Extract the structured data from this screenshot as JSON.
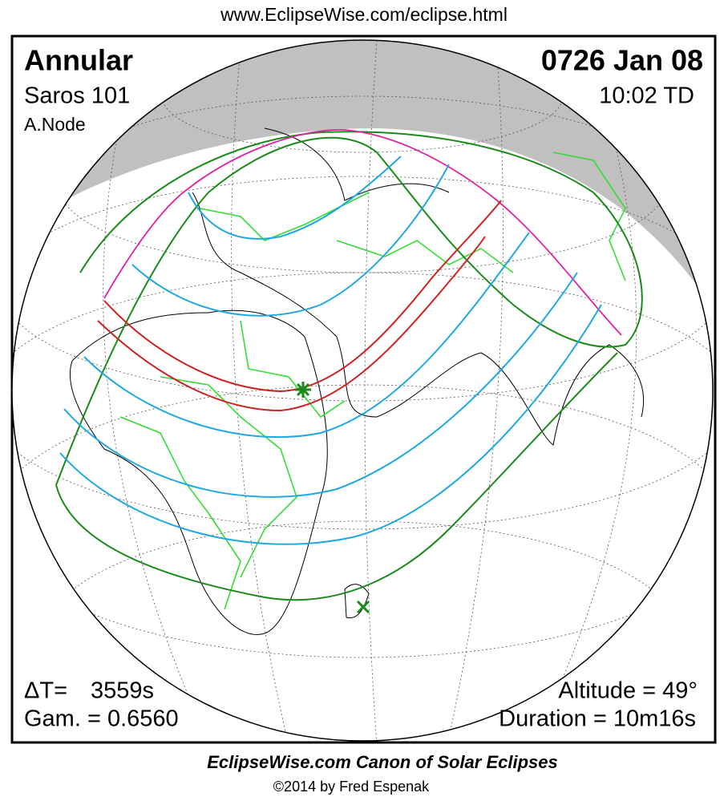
{
  "header": {
    "url": "www.EclipseWise.com/eclipse.html"
  },
  "info": {
    "type": "Annular",
    "saros": "Saros 101",
    "node": "A.Node",
    "date": "0726 Jan 08",
    "time": "10:02 TD",
    "delta_t_label": "ΔT=",
    "delta_t_value": "3559s",
    "gamma": "Gam. = 0.6560",
    "altitude": "Altitude = 49°",
    "duration": "Duration = 10m16s"
  },
  "footer": {
    "title": "EclipseWise.com Canon of Solar Eclipses",
    "credit": "©2014 by Fred Espenak"
  }
}
